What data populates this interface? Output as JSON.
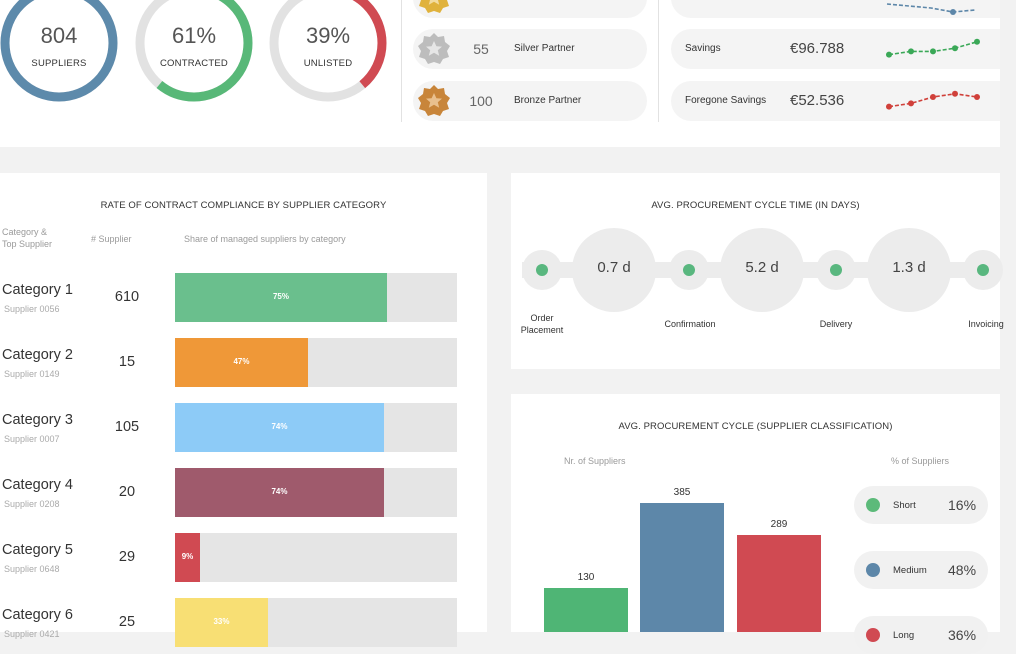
{
  "kpis": [
    {
      "value": "804",
      "label": "SUPPLIERS",
      "color": "#5d8aab",
      "fraction": 1.0
    },
    {
      "value": "61%",
      "label": "CONTRACTED",
      "color": "#58b878",
      "fraction": 0.61
    },
    {
      "value": "39%",
      "label": "UNLISTED",
      "color": "#d04a52",
      "fraction": 0.39
    }
  ],
  "partners": [
    {
      "count": "55",
      "name": "Silver Partner",
      "medal": "silver-star-medal-icon",
      "color": "#b9b9b9"
    },
    {
      "count": "100",
      "name": "Bronze Partner",
      "medal": "bronze-star-medal-icon",
      "color": "#c9863a"
    }
  ],
  "savings": [
    {
      "label": "Savings",
      "value": "€96.788",
      "color": "#3aa857",
      "trend": [
        2,
        3,
        3,
        4,
        6
      ]
    },
    {
      "label": "Foregone Savings",
      "value": "€52.536",
      "color": "#d0403a",
      "trend": [
        2,
        3,
        5,
        6,
        5
      ]
    }
  ],
  "compliance": {
    "title": "RATE OF CONTRACT COMPLIANCE BY SUPPLIER CATEGORY",
    "headers": {
      "category_line1": "Category &",
      "category_line2": "Top Supplier",
      "suppliers": "# Supplier",
      "share": "Share of managed suppliers by category"
    },
    "rows": [
      {
        "name": "Category 1",
        "supplier": "Supplier 0056",
        "count": "610",
        "pct": "75%",
        "value": 0.75,
        "color": "#6abf8d"
      },
      {
        "name": "Category 2",
        "supplier": "Supplier 0149",
        "count": "15",
        "pct": "47%",
        "value": 0.47,
        "color": "#ef9838"
      },
      {
        "name": "Category 3",
        "supplier": "Supplier 0007",
        "count": "105",
        "pct": "74%",
        "value": 0.74,
        "color": "#8dcbf7"
      },
      {
        "name": "Category 4",
        "supplier": "Supplier 0208",
        "count": "20",
        "pct": "74%",
        "value": 0.74,
        "color": "#9f5a6c"
      },
      {
        "name": "Category 5",
        "supplier": "Supplier 0648",
        "count": "29",
        "pct": "9%",
        "value": 0.09,
        "color": "#d04a52"
      },
      {
        "name": "Category 6",
        "supplier": "Supplier 0421",
        "count": "25",
        "pct": "33%",
        "value": 0.33,
        "color": "#f8df74"
      }
    ]
  },
  "cycle_time": {
    "title": "AVG. PROCUREMENT CYCLE TIME (IN DAYS)",
    "durations": [
      "0.7 d",
      "5.2 d",
      "1.3 d"
    ],
    "stages": [
      "Order Placement",
      "Confirmation",
      "Delivery",
      "Invoicing"
    ]
  },
  "classification": {
    "title": "AVG. PROCUREMENT CYCLE (SUPPLIER CLASSIFICATION)",
    "left_header": "Nr. of Suppliers",
    "right_header": "% of Suppliers",
    "legend": [
      {
        "name": "Short",
        "pct": "16%",
        "color": "#5cba7a"
      },
      {
        "name": "Medium",
        "pct": "48%",
        "color": "#5d87a9"
      },
      {
        "name": "Long",
        "pct": "36%",
        "color": "#d04a52"
      }
    ]
  },
  "chart_data": {
    "type": "bar",
    "categories": [
      "Short",
      "Medium",
      "Long"
    ],
    "values": [
      130,
      385,
      289
    ],
    "colors": [
      "#4fb575",
      "#5d87a9",
      "#d04a52"
    ],
    "title": "AVG. PROCUREMENT CYCLE (SUPPLIER CLASSIFICATION)",
    "ylabel": "Nr. of Suppliers",
    "grid": false
  }
}
